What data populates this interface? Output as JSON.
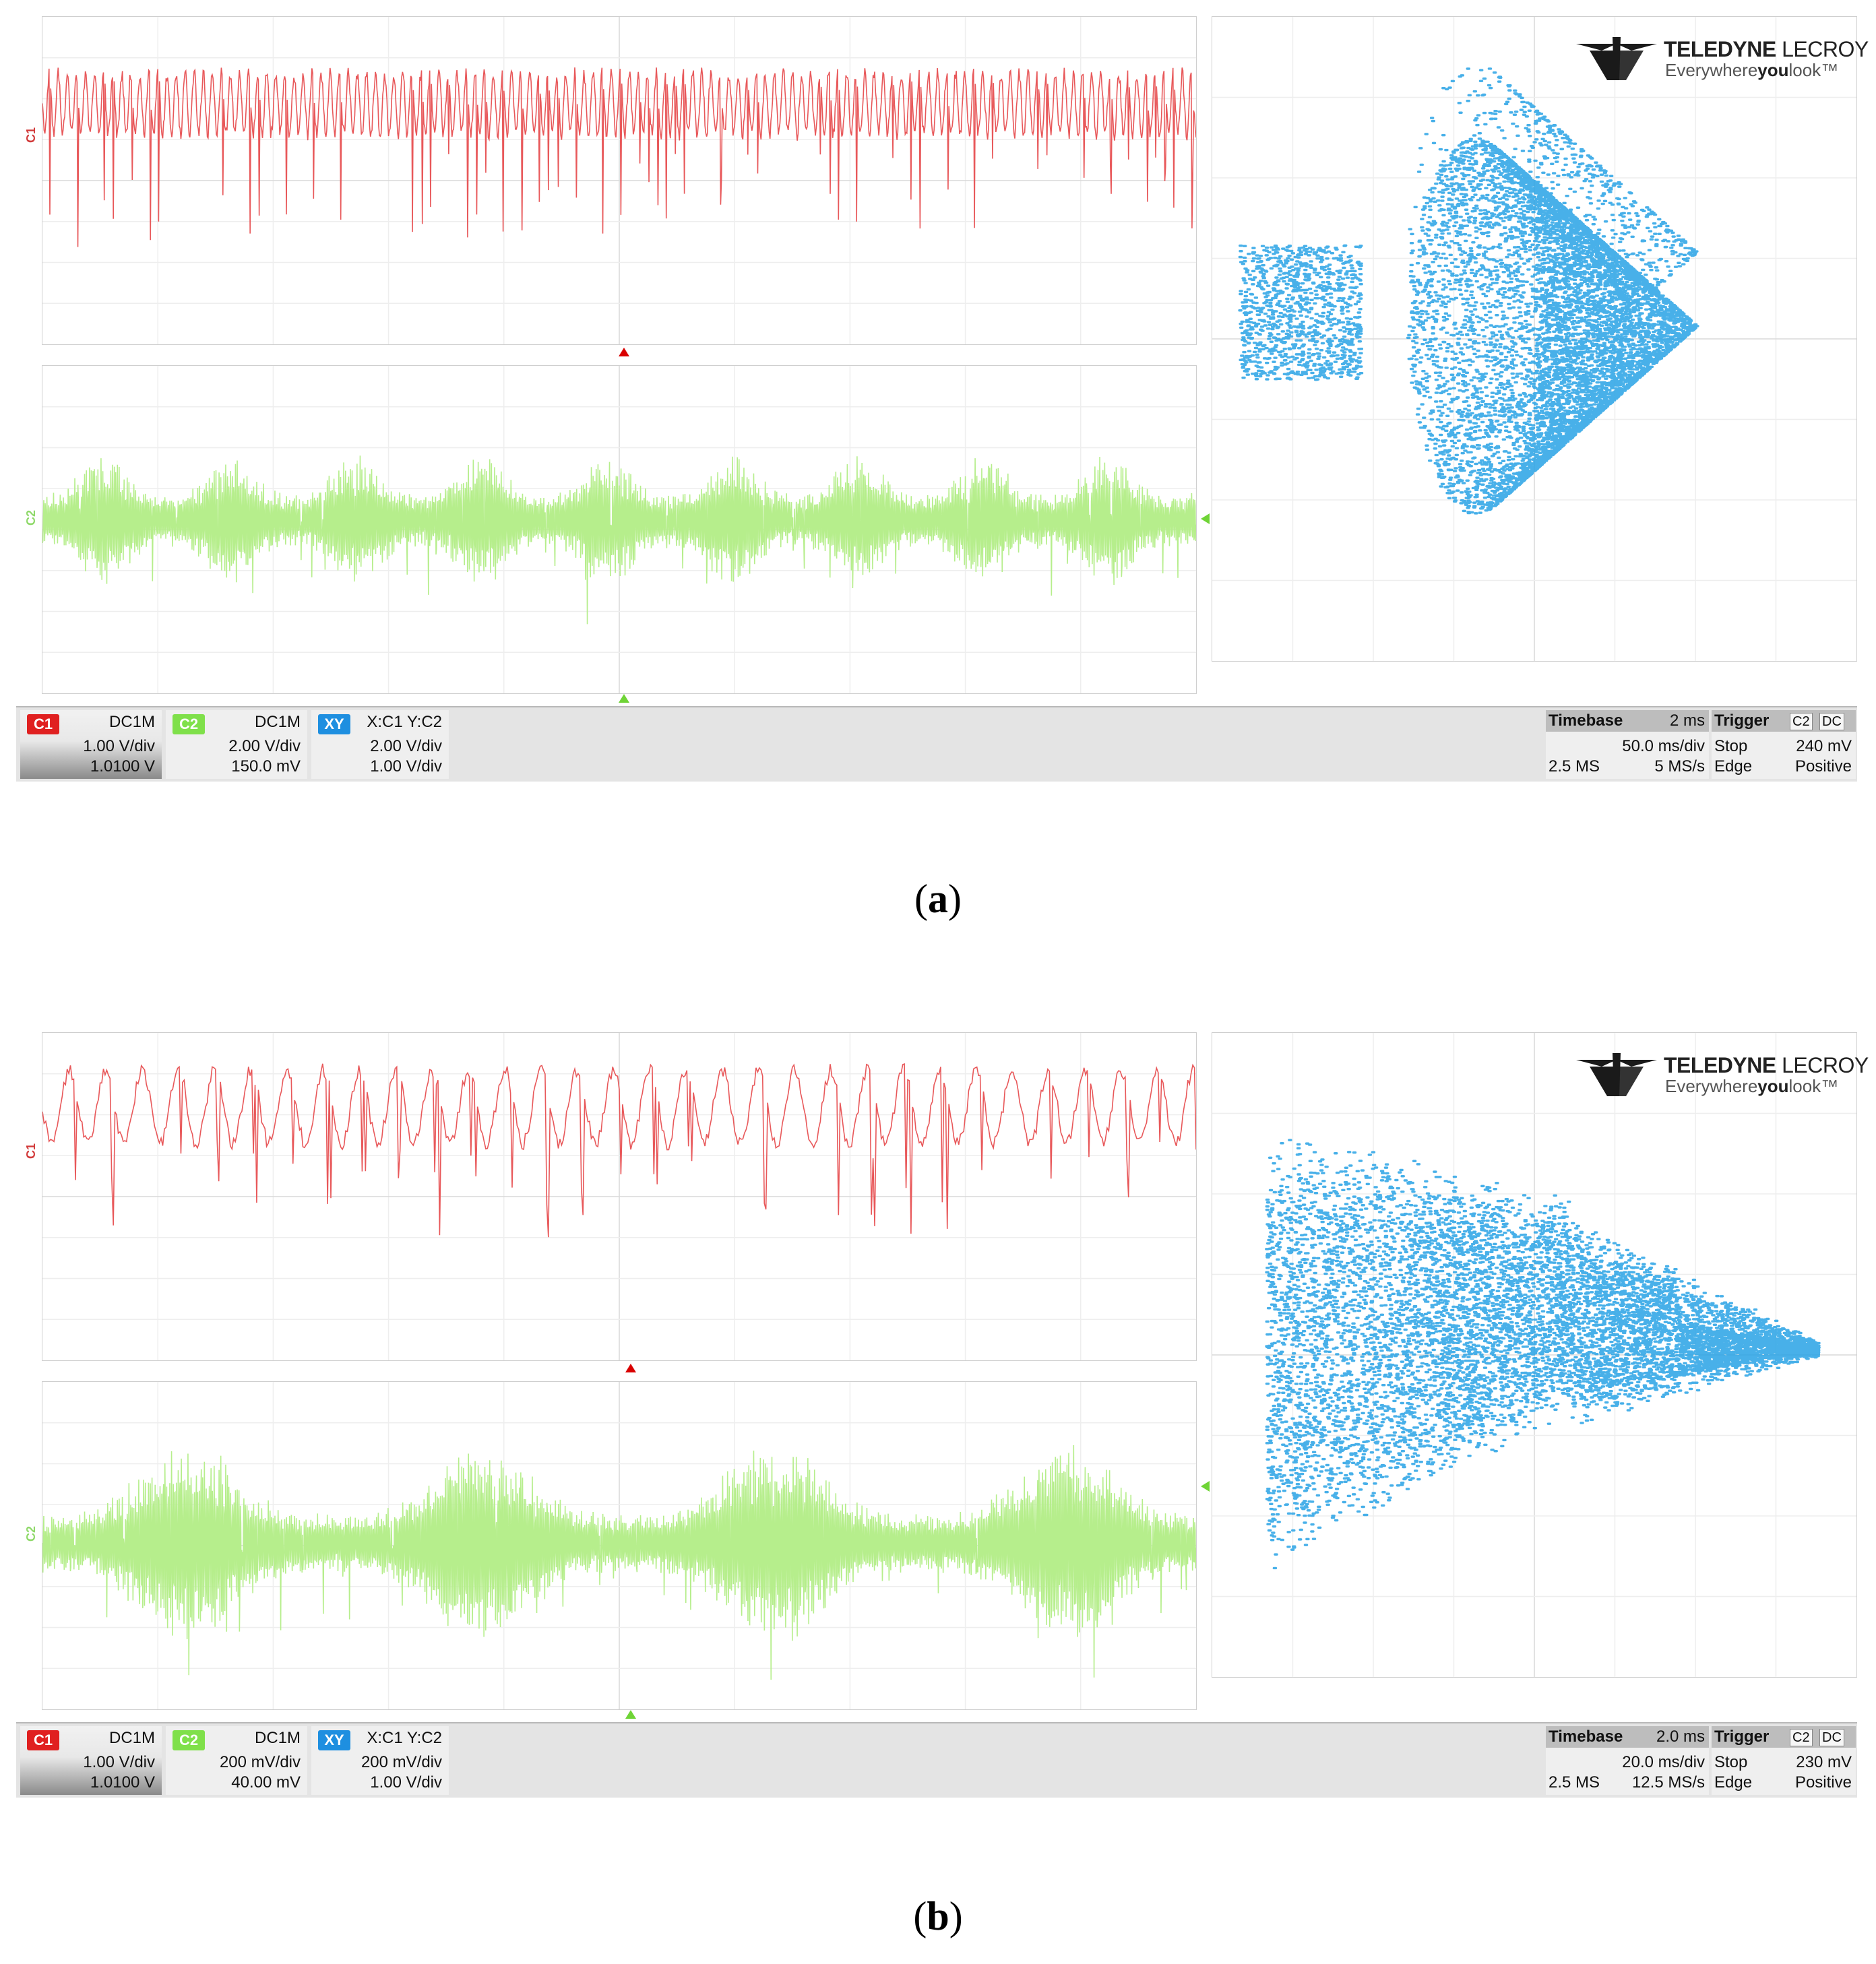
{
  "captions": {
    "a": "(a)",
    "b": "(b)",
    "a_letter": "a",
    "b_letter": "b"
  },
  "panels": [
    {
      "id": "a",
      "channel_labels": {
        "c1": "C1",
        "c2": "C2"
      },
      "logo": {
        "brand_bold": "TELEDYNE",
        "brand_thin": "LECROY",
        "tagline_pre": "Everywhere",
        "tagline_bold": "you",
        "tagline_post": "look",
        "tm": "™"
      },
      "status": {
        "c1": {
          "tag": "C1",
          "coupling": "DC1M",
          "scale": "1.00 V/div",
          "offset": "1.0100 V"
        },
        "c2": {
          "tag": "C2",
          "coupling": "DC1M",
          "scale": "2.00 V/div",
          "offset": "150.0 mV"
        },
        "xy": {
          "tag": "XY",
          "source": "X:C1 Y:C2",
          "scale_x": "2.00 V/div",
          "scale_y": "1.00 V/div"
        },
        "timebase": {
          "label": "Timebase",
          "delay": "2 ms",
          "tdiv": "50.0 ms/div",
          "samples": "2.5 MS",
          "rate": "5 MS/s"
        },
        "trigger": {
          "label": "Trigger",
          "source": "C2",
          "coupling": "DC",
          "mode": "Stop",
          "level": "240 mV",
          "type": "Edge",
          "slope": "Positive"
        }
      },
      "colors": {
        "c1": "#e8585a",
        "c2": "#b6ee8c",
        "xy": "#29a3e6"
      }
    },
    {
      "id": "b",
      "channel_labels": {
        "c1": "C1",
        "c2": "C2"
      },
      "logo": {
        "brand_bold": "TELEDYNE",
        "brand_thin": "LECROY",
        "tagline_pre": "Everywhere",
        "tagline_bold": "you",
        "tagline_post": "look",
        "tm": "™"
      },
      "status": {
        "c1": {
          "tag": "C1",
          "coupling": "DC1M",
          "scale": "1.00 V/div",
          "offset": "1.0100 V"
        },
        "c2": {
          "tag": "C2",
          "coupling": "DC1M",
          "scale": "200 mV/div",
          "offset": "40.00 mV"
        },
        "xy": {
          "tag": "XY",
          "source": "X:C1 Y:C2",
          "scale_x": "200 mV/div",
          "scale_y": "1.00 V/div"
        },
        "timebase": {
          "label": "Timebase",
          "delay": "2.0 ms",
          "tdiv": "20.0 ms/div",
          "samples": "2.5 MS",
          "rate": "12.5 MS/s"
        },
        "trigger": {
          "label": "Trigger",
          "source": "C2",
          "coupling": "DC",
          "mode": "Stop",
          "level": "230 mV",
          "type": "Edge",
          "slope": "Positive"
        }
      },
      "colors": {
        "c1": "#e8585a",
        "c2": "#b6ee8c",
        "xy": "#29a3e6"
      }
    }
  ]
}
